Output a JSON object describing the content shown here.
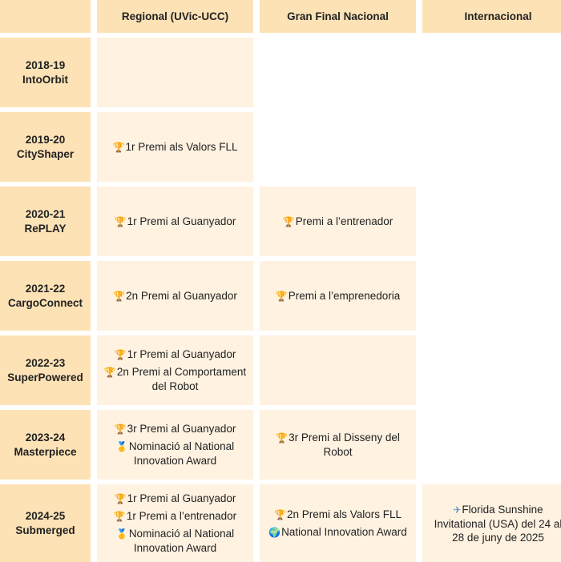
{
  "headers": {
    "regional": "Regional (UVic-UCC)",
    "national": "Gran Final Nacional",
    "international": "Internacional"
  },
  "icons": {
    "trophy": "🏆",
    "medal": "🥇",
    "globe": "🌍",
    "plane": "✈"
  },
  "seasons": [
    {
      "year": "2018-19",
      "name": "IntoOrbit",
      "regional": [],
      "national": [],
      "international": []
    },
    {
      "year": "2019-20",
      "name": "CityShaper",
      "regional": [
        {
          "icon": "trophy",
          "text": "1r Premi als Valors FLL"
        }
      ],
      "national": [],
      "international": []
    },
    {
      "year": "2020-21",
      "name": "RePLAY",
      "regional": [
        {
          "icon": "trophy",
          "text": "1r Premi al Guanyador"
        }
      ],
      "national": [
        {
          "icon": "trophy",
          "text": "Premi a l’entrenador"
        }
      ],
      "international": []
    },
    {
      "year": "2021-22",
      "name": "CargoConnect",
      "regional": [
        {
          "icon": "trophy",
          "text": "2n Premi al Guanyador"
        }
      ],
      "national": [
        {
          "icon": "trophy",
          "text": "Premi a l’emprenedoria"
        }
      ],
      "international": []
    },
    {
      "year": "2022-23",
      "name": "SuperPowered",
      "regional": [
        {
          "icon": "trophy",
          "text": "1r Premi al Guanyador"
        },
        {
          "icon": "trophy",
          "text": "2n Premi al Comportament del Robot"
        }
      ],
      "national": [],
      "international": []
    },
    {
      "year": "2023-24",
      "name": "Masterpiece",
      "regional": [
        {
          "icon": "trophy",
          "text": "3r Premi al Guanyador"
        },
        {
          "icon": "medal",
          "text": "Nominació al National Innovation Award"
        }
      ],
      "national": [
        {
          "icon": "trophy",
          "text": "3r Premi al Disseny del Robot"
        }
      ],
      "international": []
    },
    {
      "year": "2024-25",
      "name": "Submerged",
      "regional": [
        {
          "icon": "trophy",
          "text": "1r Premi al Guanyador"
        },
        {
          "icon": "trophy",
          "text": "1r Premi a l’entrenador"
        },
        {
          "icon": "medal",
          "text": "Nominació al National Innovation Award"
        }
      ],
      "national": [
        {
          "icon": "trophy",
          "text": "2n Premi als Valors FLL"
        },
        {
          "icon": "globe",
          "text": "National Innovation Award"
        }
      ],
      "international": [
        {
          "icon": "plane",
          "text": "Florida Sunshine Invitational (USA) del 24 al 28 de juny de 2025"
        }
      ]
    }
  ]
}
